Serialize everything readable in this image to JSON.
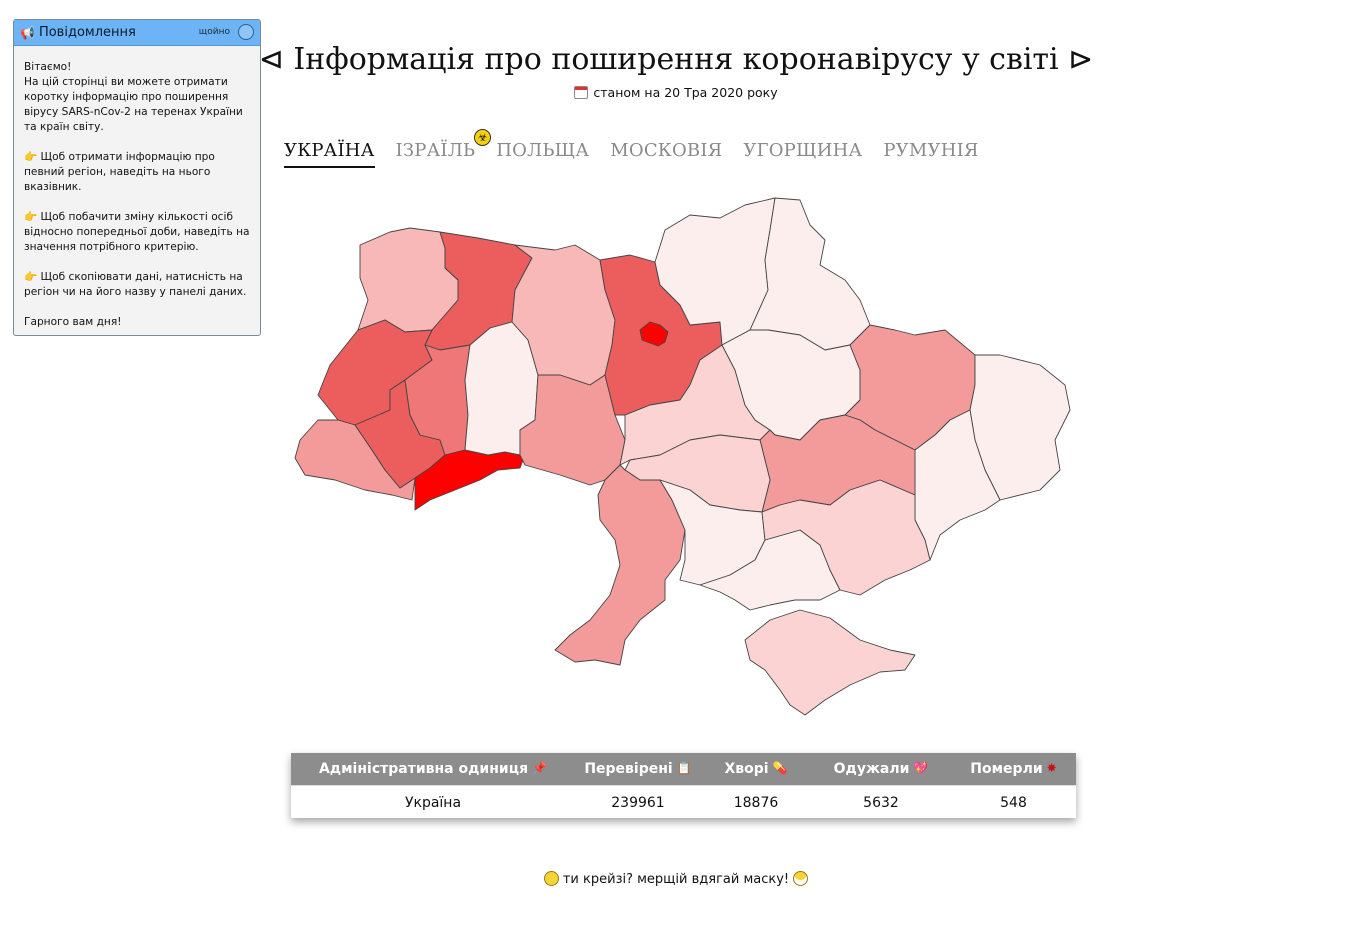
{
  "notification": {
    "title": "Повідомлення",
    "time": "щойно",
    "icon": "megaphone-icon",
    "paragraphs": [
      "Вітаємо!\nНа цій сторінці ви можете отримати коротку інформацію про поширення вірусу SARS-nCov-2 на теренах України та країн світу.",
      "👉 Щоб отримати інформацію про певний регіон, наведіть на нього вказівник.",
      "👉 Щоб побачити зміну кількості осіб відносно попередньої доби, наведіть на значення потрібного критерію.",
      "👉 Щоб скопіювати дані, натисність на регіон чи на його назву у панелі даних.",
      "Гарного вам дня!"
    ]
  },
  "header": {
    "title": "⊲ Інформація про поширення коронавірусу у світі ⊳",
    "date": "станом на 20 Тра 2020 року",
    "date_icon": "calendar-icon"
  },
  "tabs": [
    {
      "label": "УКРАЇНА",
      "active": true
    },
    {
      "label": "ІЗРАЇЛЬ",
      "active": false,
      "badge_icon": "biohazard-icon"
    },
    {
      "label": "ПОЛЬЩА",
      "active": false
    },
    {
      "label": "МОСКОВІЯ",
      "active": false
    },
    {
      "label": "УГОРЩИНА",
      "active": false
    },
    {
      "label": "РУМУНІЯ",
      "active": false
    }
  ],
  "map_colors": {
    "very_light": "#fdeeee",
    "light": "#fbd3d3",
    "light_medium": "#f8b8b8",
    "medium": "#f39a9a",
    "medium_dark": "#f07777",
    "dark": "#ec5e5e",
    "max": "#ff0000"
  },
  "table": {
    "headers": [
      {
        "label": "Адміністративна одиниця",
        "icon": "pushpin-icon",
        "glyph": "📌"
      },
      {
        "label": "Перевірені",
        "icon": "clipboard-icon",
        "glyph": "📋"
      },
      {
        "label": "Хворі",
        "icon": "pill-icon",
        "glyph": "💊"
      },
      {
        "label": "Одужали",
        "icon": "heart-icon",
        "glyph": "💖"
      },
      {
        "label": "Померли",
        "icon": "virus-icon",
        "glyph": "✸"
      }
    ],
    "row": {
      "name": "Україна",
      "tested": "239961",
      "sick": "18876",
      "recovered": "5632",
      "died": "548"
    }
  },
  "footer": {
    "text": "ти крейзі? мерщій вдягай маску!",
    "left_icon": "scream-face-icon",
    "right_icon": "mask-face-icon"
  }
}
